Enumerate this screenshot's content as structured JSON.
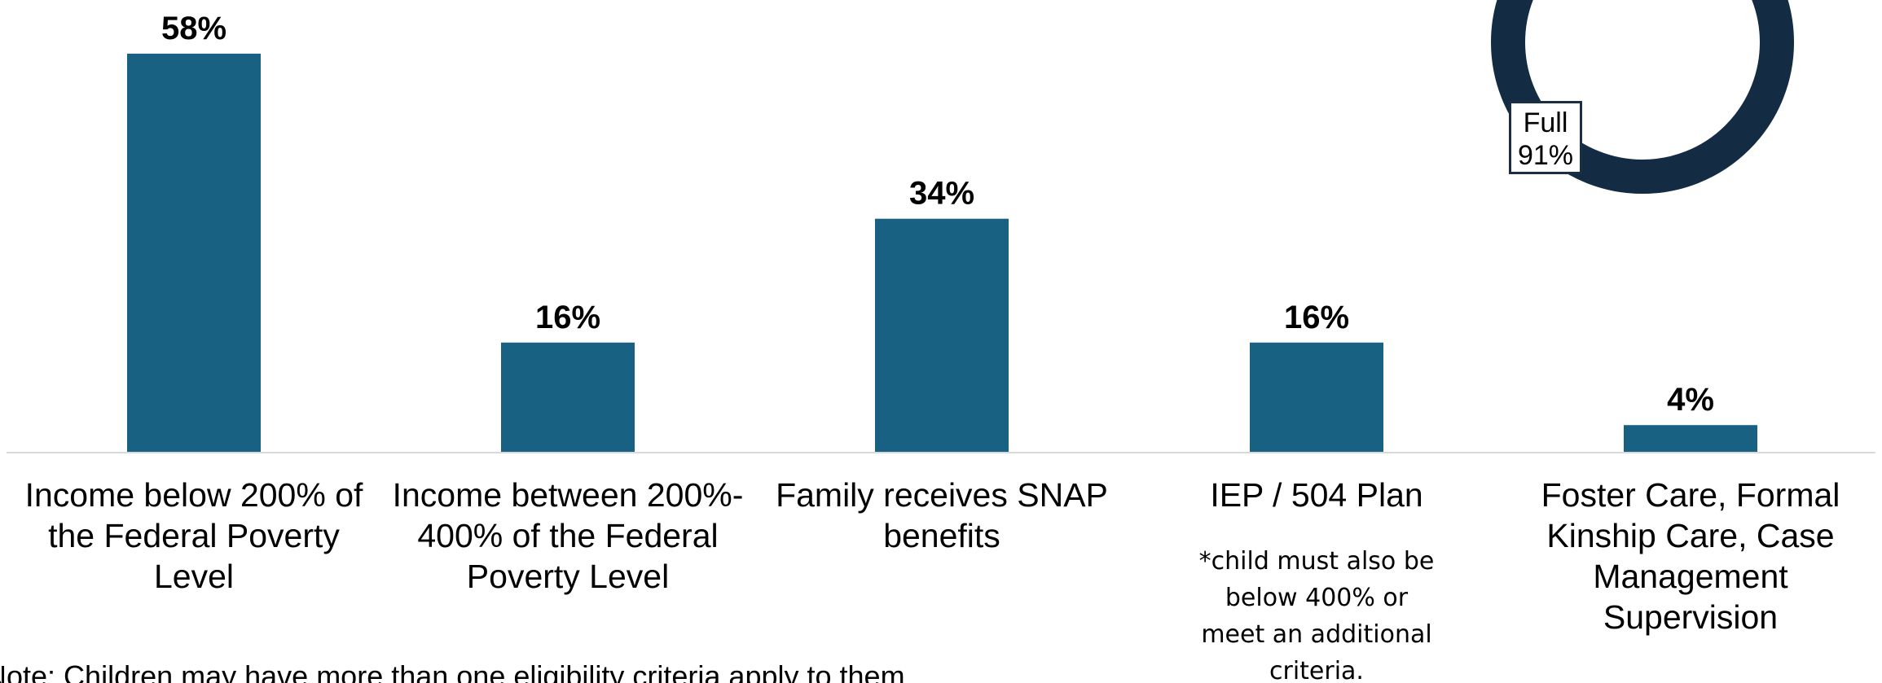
{
  "chart_data": {
    "type": "bar",
    "categories": [
      "Income below 200% of the Federal Poverty Level",
      "Income between 200%-400% of the Federal Poverty Level",
      "Family receives SNAP benefits",
      "IEP / 504 Plan",
      "Foster Care, Formal Kinship Care, Case Management Supervision"
    ],
    "values": [
      58,
      16,
      34,
      16,
      4
    ],
    "data_labels": [
      "58%",
      "16%",
      "34%",
      "16%",
      "4%"
    ],
    "ylim": [
      0,
      60
    ],
    "grid": false,
    "colors": {
      "bar": "#186183",
      "donut": "#142c43"
    },
    "category_lines": [
      [
        "Income below 200% of",
        "the Federal Poverty",
        "Level"
      ],
      [
        "Income between 200%-",
        "400% of the Federal",
        "Poverty Level"
      ],
      [
        "Family receives SNAP",
        "benefits"
      ],
      [
        "IEP / 504 Plan"
      ],
      [
        "Foster Care, Formal",
        "Kinship Care, Case",
        "Management",
        "Supervision"
      ]
    ],
    "category_note": {
      "index": 3,
      "lines": [
        "*child must also be",
        "below 400% or",
        "meet an additional",
        "criteria."
      ]
    },
    "footnote": "Note: Children may have more than one eligibility criteria apply to them."
  },
  "donut": {
    "slices": [
      {
        "label": "Full",
        "value": 91,
        "display": "91%"
      }
    ],
    "label_lines": [
      "Full",
      "91%"
    ]
  }
}
